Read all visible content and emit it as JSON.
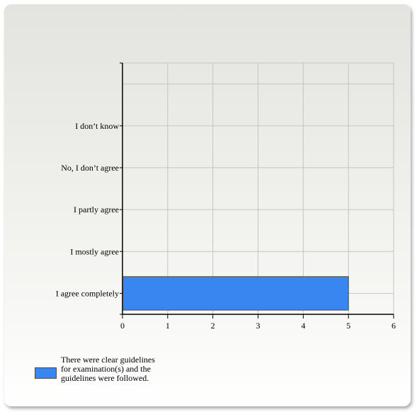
{
  "chart_data": {
    "type": "bar",
    "orientation": "horizontal",
    "categories": [
      "I agree completely",
      "I mostly agree",
      "I partly agree",
      "No, I don’t agree",
      "I don’t know"
    ],
    "series": [
      {
        "name": "There were clear guidelines for examination(s) and the guidelines were followed.",
        "values": [
          5,
          0,
          0,
          0,
          0
        ],
        "color": "#3a86f0"
      }
    ],
    "xticks": [
      "0",
      "1",
      "2",
      "3",
      "4",
      "5",
      "6"
    ],
    "xlim": [
      0,
      6
    ],
    "grid": true,
    "legend_position": "bottom-left",
    "legend_lines": [
      "There were clear guidelines",
      "for examination(s) and the",
      "guidelines were followed."
    ],
    "title": "",
    "xlabel": "",
    "ylabel": ""
  }
}
